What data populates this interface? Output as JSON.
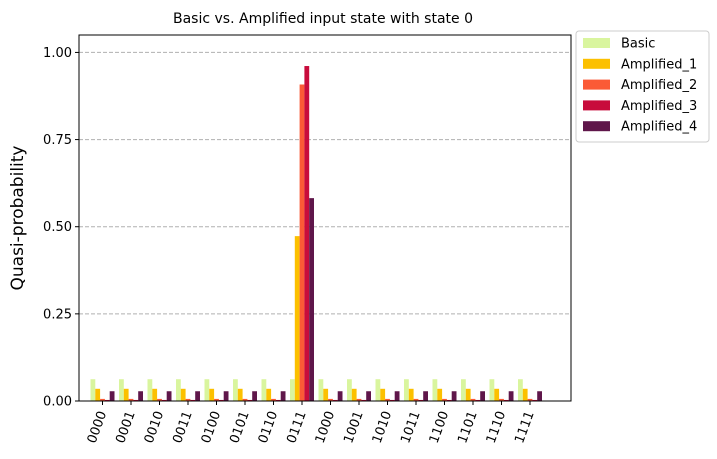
{
  "chart_data": {
    "type": "bar",
    "title": "Basic vs. Amplified input state with state 0",
    "xlabel": "",
    "ylabel": "Quasi-probability",
    "ylim": [
      0,
      1.05
    ],
    "yticks": [
      0.0,
      0.25,
      0.5,
      0.75,
      1.0
    ],
    "ytick_labels": [
      "0.00",
      "0.25",
      "0.50",
      "0.75",
      "1.00"
    ],
    "grid": "horizontal dashed",
    "legend_position": "outside-upper-right",
    "categories": [
      "0000",
      "0001",
      "0010",
      "0011",
      "0100",
      "0101",
      "0110",
      "0111",
      "1000",
      "1001",
      "1010",
      "1011",
      "1100",
      "1101",
      "1110",
      "1111"
    ],
    "series": [
      {
        "name": "Basic",
        "color": "#d9f59e",
        "values": [
          0.0625,
          0.0625,
          0.0625,
          0.0625,
          0.0625,
          0.0625,
          0.0625,
          0.0625,
          0.0625,
          0.0625,
          0.0625,
          0.0625,
          0.0625,
          0.0625,
          0.0625,
          0.0625
        ]
      },
      {
        "name": "Amplified_1",
        "color": "#fcc000",
        "values": [
          0.035,
          0.035,
          0.035,
          0.035,
          0.035,
          0.035,
          0.035,
          0.473,
          0.035,
          0.035,
          0.035,
          0.035,
          0.035,
          0.035,
          0.035,
          0.035
        ]
      },
      {
        "name": "Amplified_2",
        "color": "#fb5a36",
        "values": [
          0.006,
          0.006,
          0.006,
          0.006,
          0.006,
          0.006,
          0.006,
          0.908,
          0.006,
          0.006,
          0.006,
          0.006,
          0.006,
          0.006,
          0.006,
          0.006
        ]
      },
      {
        "name": "Amplified_3",
        "color": "#c80c3c",
        "values": [
          0.003,
          0.003,
          0.003,
          0.003,
          0.003,
          0.003,
          0.003,
          0.961,
          0.003,
          0.003,
          0.003,
          0.003,
          0.003,
          0.003,
          0.003,
          0.003
        ]
      },
      {
        "name": "Amplified_4",
        "color": "#5f164a",
        "values": [
          0.028,
          0.028,
          0.028,
          0.028,
          0.028,
          0.028,
          0.028,
          0.582,
          0.028,
          0.028,
          0.028,
          0.028,
          0.028,
          0.028,
          0.028,
          0.028
        ]
      }
    ]
  }
}
